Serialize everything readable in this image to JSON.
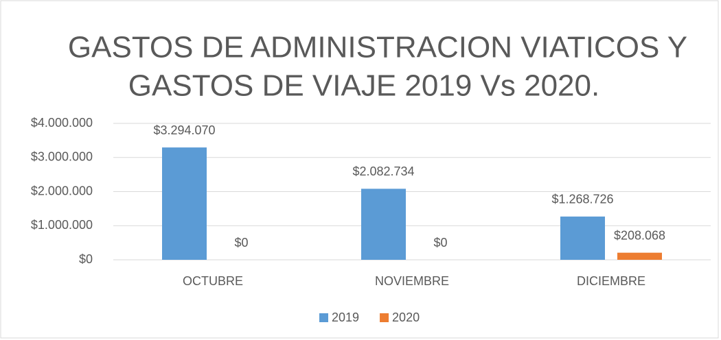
{
  "chart_data": {
    "type": "bar",
    "title": [
      "GASTOS DE ADMINISTRACION VIATICOS Y",
      "GASTOS DE VIAJE 2019 Vs 2020."
    ],
    "categories": [
      "OCTUBRE",
      "NOVIEMBRE",
      "DICIEMBRE"
    ],
    "series": [
      {
        "name": "2019",
        "color": "#5b9bd5",
        "values": [
          3294070,
          2082734,
          1268726
        ],
        "value_labels": [
          "$3.294.070",
          "$2.082.734",
          "$1.268.726"
        ]
      },
      {
        "name": "2020",
        "color": "#ed7d31",
        "values": [
          0,
          0,
          208068
        ],
        "value_labels": [
          "$0",
          "$0",
          "$208.068"
        ]
      }
    ],
    "ylim": [
      0,
      4000000
    ],
    "yticks": [
      {
        "value": 0,
        "label": "$0"
      },
      {
        "value": 1000000,
        "label": "$1.000.000"
      },
      {
        "value": 2000000,
        "label": "$2.000.000"
      },
      {
        "value": 3000000,
        "label": "$3.000.000"
      },
      {
        "value": 4000000,
        "label": "$4.000.000"
      }
    ],
    "grid": true,
    "legend": "bottom"
  }
}
